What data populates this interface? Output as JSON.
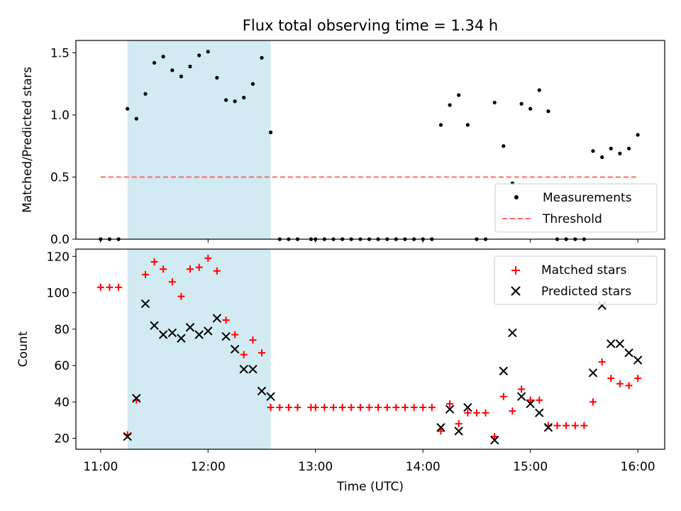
{
  "chart_data": [
    {
      "type": "scatter",
      "title": "Flux total observing time = 1.34 h",
      "ylabel": "Matched/Predicted stars",
      "xlabel": "",
      "xlim_hours": [
        10.77,
        16.25
      ],
      "ylim": [
        0,
        1.6
      ],
      "yticks": [
        0.0,
        0.5,
        1.0,
        1.5
      ],
      "ytick_labels": [
        "0.0",
        "0.5",
        "1.0",
        "1.5"
      ],
      "highlight_span_hours": [
        11.25,
        12.583
      ],
      "highlight_color": "#add8e6",
      "threshold": {
        "value": 0.5,
        "x_range_hours": [
          11.0,
          16.0
        ],
        "color": "#ff6b6b",
        "style": "dashed"
      },
      "legend": {
        "location": "lower-right",
        "entries": [
          "Measurements",
          "Threshold"
        ]
      },
      "series": [
        {
          "name": "Measurements",
          "marker": "dot",
          "color": "#000000",
          "x_hours": [
            11.0,
            11.083,
            11.167,
            11.25,
            11.333,
            11.417,
            11.5,
            11.583,
            11.667,
            11.75,
            11.833,
            11.917,
            12.0,
            12.083,
            12.167,
            12.25,
            12.333,
            12.417,
            12.5,
            12.583,
            12.667,
            12.75,
            12.833,
            12.958,
            13.0,
            13.083,
            13.167,
            13.25,
            13.333,
            13.417,
            13.5,
            13.583,
            13.667,
            13.75,
            13.833,
            13.917,
            14.0,
            14.083,
            14.167,
            14.25,
            14.333,
            14.417,
            14.5,
            14.583,
            14.667,
            14.75,
            14.833,
            14.917,
            15.0,
            15.083,
            15.167,
            15.25,
            15.333,
            15.417,
            15.5,
            15.583,
            15.667,
            15.75,
            15.833,
            15.917,
            16.0
          ],
          "y": [
            0.0,
            0.0,
            0.0,
            1.05,
            0.97,
            1.17,
            1.42,
            1.47,
            1.36,
            1.31,
            1.39,
            1.48,
            1.51,
            1.3,
            1.12,
            1.11,
            1.14,
            1.25,
            1.46,
            0.86,
            0.0,
            0.0,
            0.0,
            0.0,
            0.0,
            0.0,
            0.0,
            0.0,
            0.0,
            0.0,
            0.0,
            0.0,
            0.0,
            0.0,
            0.0,
            0.0,
            0.0,
            0.0,
            0.92,
            1.08,
            1.16,
            0.92,
            0.0,
            0.0,
            1.1,
            0.75,
            0.45,
            1.09,
            1.05,
            1.2,
            1.03,
            0.0,
            0.0,
            0.0,
            0.0,
            0.71,
            0.66,
            0.73,
            0.69,
            0.73,
            0.84
          ]
        }
      ]
    },
    {
      "type": "scatter",
      "title": "",
      "ylabel": "Count",
      "xlabel": "Time (UTC)",
      "xlim_hours": [
        10.77,
        16.25
      ],
      "ylim": [
        14,
        124
      ],
      "xticks_hours": [
        11,
        12,
        13,
        14,
        15,
        16
      ],
      "xtick_labels": [
        "11:00",
        "12:00",
        "13:00",
        "14:00",
        "15:00",
        "16:00"
      ],
      "yticks": [
        20,
        40,
        60,
        80,
        100,
        120
      ],
      "ytick_labels": [
        "20",
        "40",
        "60",
        "80",
        "100",
        "120"
      ],
      "highlight_span_hours": [
        11.25,
        12.583
      ],
      "highlight_color": "#add8e6",
      "legend": {
        "location": "top-right",
        "entries": [
          "Matched stars",
          "Predicted stars"
        ]
      },
      "series": [
        {
          "name": "Matched stars",
          "marker": "plus",
          "color": "#ff0000",
          "x_hours": [
            11.0,
            11.083,
            11.167,
            11.25,
            11.333,
            11.417,
            11.5,
            11.583,
            11.667,
            11.75,
            11.833,
            11.917,
            12.0,
            12.083,
            12.167,
            12.25,
            12.333,
            12.417,
            12.5,
            12.583,
            12.667,
            12.75,
            12.833,
            12.958,
            13.0,
            13.083,
            13.167,
            13.25,
            13.333,
            13.417,
            13.5,
            13.583,
            13.667,
            13.75,
            13.833,
            13.917,
            14.0,
            14.083,
            14.167,
            14.25,
            14.333,
            14.417,
            14.5,
            14.583,
            14.667,
            14.75,
            14.833,
            14.917,
            15.0,
            15.083,
            15.167,
            15.25,
            15.333,
            15.417,
            15.5,
            15.583,
            15.667,
            15.75,
            15.833,
            15.917,
            16.0
          ],
          "y": [
            103,
            103,
            103,
            22,
            41,
            110,
            117,
            113,
            106,
            98,
            113,
            114,
            119,
            112,
            85,
            77,
            66,
            74,
            67,
            37,
            37,
            37,
            37,
            37,
            37,
            37,
            37,
            37,
            37,
            37,
            37,
            37,
            37,
            37,
            37,
            37,
            37,
            37,
            24,
            39,
            28,
            34,
            34,
            34,
            21,
            43,
            35,
            47,
            41,
            41,
            27,
            27,
            27,
            27,
            27,
            40,
            62,
            53,
            50,
            49,
            53
          ]
        },
        {
          "name": "Predicted stars",
          "marker": "x",
          "color": "#000000",
          "x_hours": [
            11.25,
            11.333,
            11.417,
            11.5,
            11.583,
            11.667,
            11.75,
            11.833,
            11.917,
            12.0,
            12.083,
            12.167,
            12.25,
            12.333,
            12.417,
            12.5,
            12.583,
            14.167,
            14.25,
            14.333,
            14.417,
            14.667,
            14.75,
            14.833,
            14.917,
            15.0,
            15.083,
            15.167,
            15.583,
            15.667,
            15.75,
            15.833,
            15.917,
            16.0
          ],
          "y": [
            21,
            42,
            94,
            82,
            77,
            78,
            75,
            81,
            77,
            79,
            86,
            76,
            69,
            58,
            58,
            46,
            43,
            26,
            36,
            24,
            37,
            19,
            57,
            78,
            43,
            39,
            34,
            26,
            56,
            93,
            72,
            72,
            67,
            63
          ]
        }
      ]
    }
  ]
}
